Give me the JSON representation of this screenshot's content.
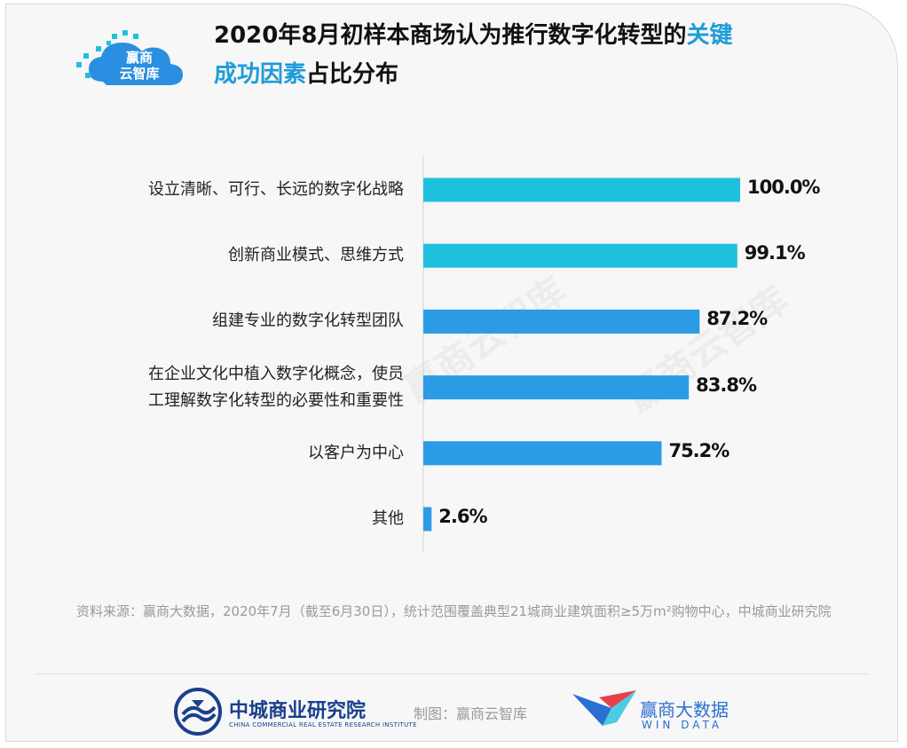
{
  "title": {
    "line1_prefix": "2020年8月初样本商场认为推行数字化转型的",
    "line1_highlight": "关键",
    "line2_highlight": "成功因素",
    "line2_suffix": "占比分布"
  },
  "logo": {
    "line1": "赢商",
    "line2": "云智库"
  },
  "chart_data": {
    "type": "bar",
    "orientation": "horizontal",
    "title": "2020年8月初样本商场认为推行数字化转型的关键成功因素占比分布",
    "categories": [
      [
        "设立清晰、可行、长远的数字化战略"
      ],
      [
        "创新商业模式、思维方式"
      ],
      [
        "组建专业的数字化转型团队"
      ],
      [
        "在企业文化中植入数字化概念，使员",
        "工理解数字化转型的必要性和重要性"
      ],
      [
        "以客户为中心"
      ],
      [
        "其他"
      ]
    ],
    "values": [
      100.0,
      99.1,
      87.2,
      83.8,
      75.2,
      2.6
    ],
    "value_labels": [
      "100.0%",
      "99.1%",
      "87.2%",
      "83.8%",
      "75.2%",
      "2.6%"
    ],
    "bar_colors": [
      "#1ec0dd",
      "#1ec0dd",
      "#2a9be4",
      "#2a9be4",
      "#2a9be4",
      "#2a9be4"
    ],
    "xlim": [
      0,
      100
    ]
  },
  "source": "资料来源：赢商大数据，2020年7月（截至6月30日），统计范围覆盖典型21城商业建筑面积≥5万m²购物中心，中城商业研究院",
  "footer": {
    "org_name": "中城商业研究院",
    "org_sub": "CHINA COMMERCIAL REAL ESTATE RESEARCH INSTITUTE",
    "credit": "制图：赢商云智库",
    "windata_name": "赢商大数据",
    "windata_sub": "WIN DATA"
  },
  "watermark": "赢商云智库",
  "colors": {
    "accent": "#1f9cd8",
    "bar_primary": "#1ec0dd",
    "bar_secondary": "#2a9be4"
  }
}
